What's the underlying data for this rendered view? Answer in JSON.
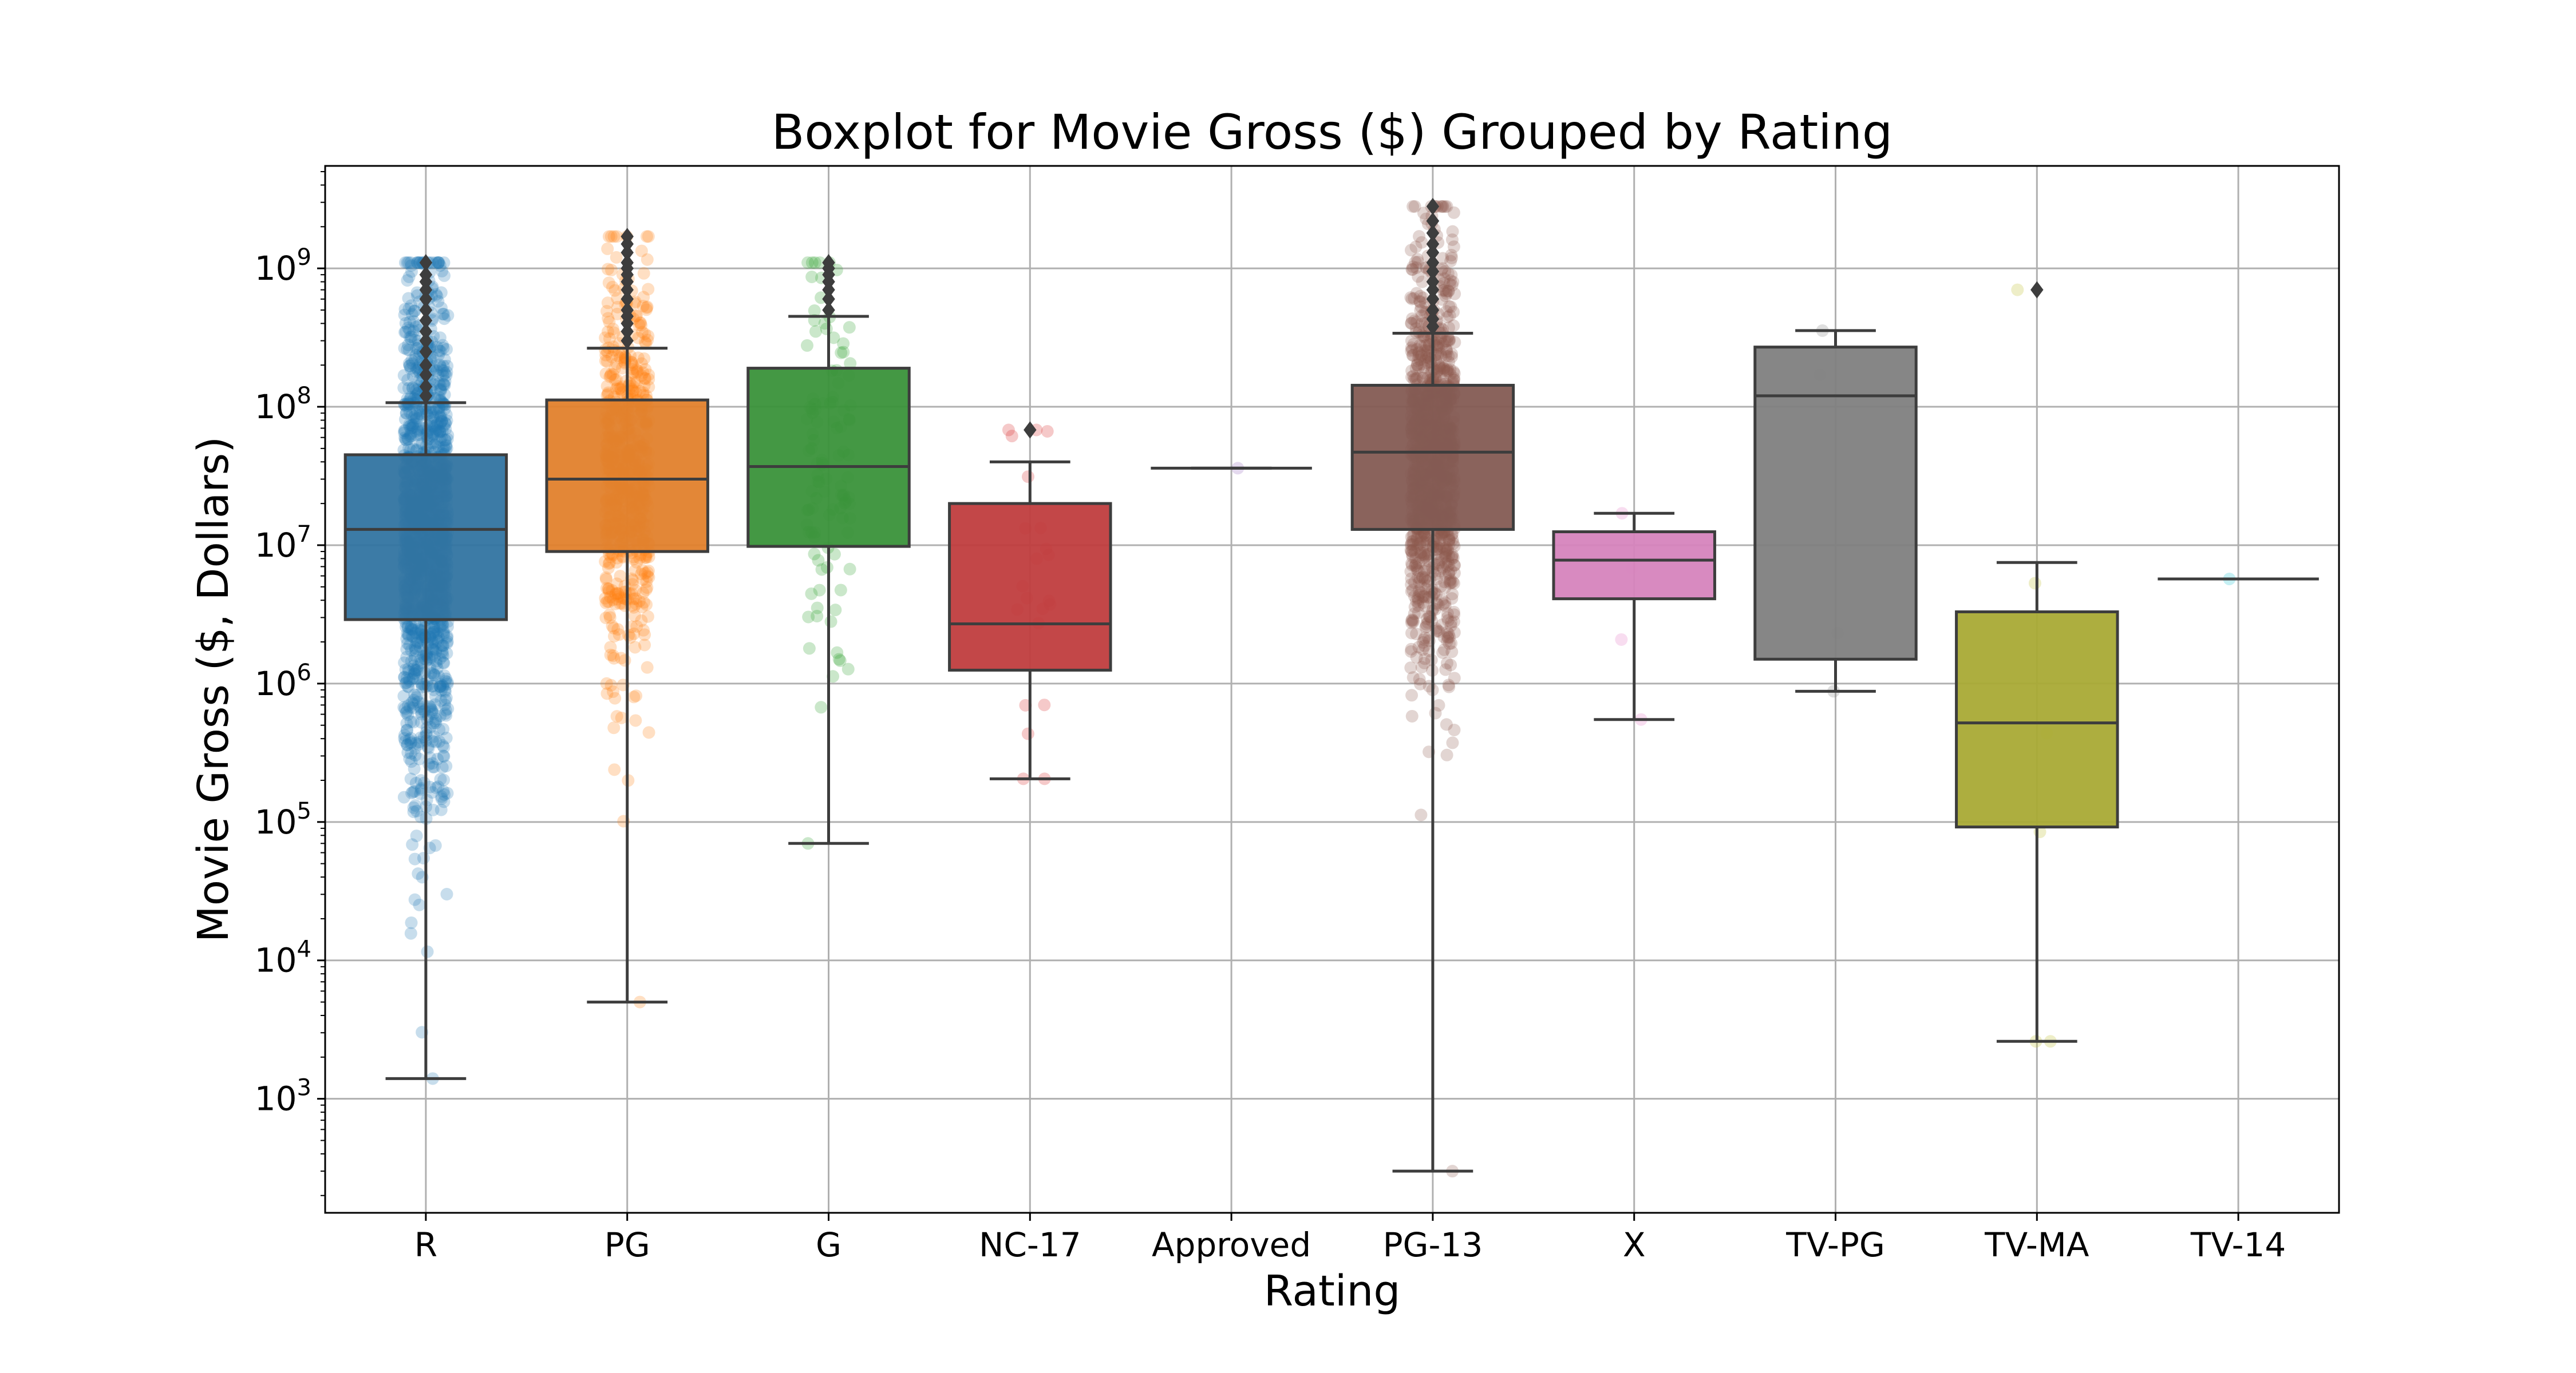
{
  "chart_data": {
    "type": "boxplot",
    "title": "Boxplot for Movie Gross ($) Grouped by Rating",
    "xlabel": "Rating",
    "ylabel": "Movie Gross ($, Dollars)",
    "yscale": "log",
    "ylim": [
      150,
      5500000000
    ],
    "yticks": [
      {
        "value": 1000,
        "base": "10",
        "exp": "3"
      },
      {
        "value": 10000,
        "base": "10",
        "exp": "4"
      },
      {
        "value": 100000,
        "base": "10",
        "exp": "5"
      },
      {
        "value": 1000000,
        "base": "10",
        "exp": "6"
      },
      {
        "value": 10000000,
        "base": "10",
        "exp": "7"
      },
      {
        "value": 100000000,
        "base": "10",
        "exp": "8"
      },
      {
        "value": 1000000000,
        "base": "10",
        "exp": "9"
      }
    ],
    "grid": true,
    "groups": [
      {
        "category": "R",
        "color": "#3274a1",
        "point_color": "#1f77b4",
        "whisker_low": 1400,
        "q1": 2900000,
        "median": 13000000,
        "q3": 45000000,
        "whisker_high": 107000000,
        "outliers": [
          1100000000,
          900000000,
          800000000,
          700000000,
          600000000,
          500000000,
          420000000,
          350000000,
          300000000,
          250000000,
          200000000,
          170000000,
          140000000,
          120000000
        ],
        "points": {
          "count": 1400,
          "min": 1400,
          "max": 1100000000,
          "log_mean": 7.1,
          "log_sd": 0.9
        }
      },
      {
        "category": "PG",
        "color": "#e1812c",
        "point_color": "#ff7f0e",
        "whisker_low": 5000,
        "q1": 9000000,
        "median": 30000000,
        "q3": 112000000,
        "whisker_high": 265000000,
        "outliers": [
          1700000000,
          1500000000,
          1300000000,
          1100000000,
          1000000000,
          900000000,
          800000000,
          700000000,
          600000000,
          500000000,
          450000000,
          400000000,
          350000000,
          300000000
        ],
        "points": {
          "count": 600,
          "min": 5000,
          "max": 1700000000,
          "log_mean": 7.5,
          "log_sd": 0.75
        }
      },
      {
        "category": "G",
        "color": "#3a923a",
        "point_color": "#2ca02c",
        "whisker_low": 70000,
        "q1": 9800000,
        "median": 37000000,
        "q3": 190000000,
        "whisker_high": 450000000,
        "outliers": [
          1100000000,
          1000000000,
          900000000,
          800000000,
          700000000,
          600000000,
          500000000
        ],
        "points": {
          "count": 110,
          "min": 70000,
          "max": 1100000000,
          "log_mean": 7.6,
          "log_sd": 0.8
        }
      },
      {
        "category": "NC-17",
        "color": "#c03d3e",
        "point_color": "#d62728",
        "whisker_low": 205000,
        "q1": 1250000,
        "median": 2700000,
        "q3": 20000000,
        "whisker_high": 40000000,
        "outliers": [
          68000000
        ],
        "points": {
          "count": 22,
          "min": 205000,
          "max": 68000000,
          "log_mean": 6.6,
          "log_sd": 0.7
        }
      },
      {
        "category": "Approved",
        "color": "#9372b2",
        "point_color": "#9467bd",
        "whisker_low": 36000000,
        "q1": 36000000,
        "median": 36000000,
        "q3": 36000000,
        "whisker_high": 36000000,
        "outliers": [],
        "points": {
          "count": 1,
          "min": 36000000,
          "max": 36000000,
          "log_mean": 7.56,
          "log_sd": 0.0
        }
      },
      {
        "category": "PG-13",
        "color": "#845b53",
        "point_color": "#8c564b",
        "whisker_low": 300,
        "q1": 13000000,
        "median": 47000000,
        "q3": 143000000,
        "whisker_high": 340000000,
        "outliers": [
          2800000000,
          2200000000,
          1800000000,
          1500000000,
          1300000000,
          1100000000,
          950000000,
          800000000,
          700000000,
          600000000,
          500000000,
          430000000,
          380000000
        ],
        "points": {
          "count": 1100,
          "min": 300,
          "max": 2800000000,
          "log_mean": 7.6,
          "log_sd": 0.75
        }
      },
      {
        "category": "X",
        "color": "#d684bd",
        "point_color": "#e377c2",
        "whisker_low": 550000,
        "q1": 4100000,
        "median": 7800000,
        "q3": 12500000,
        "whisker_high": 17000000,
        "outliers": [],
        "points": {
          "count": 4,
          "min": 550000,
          "max": 17000000,
          "log_mean": 6.8,
          "log_sd": 0.5
        }
      },
      {
        "category": "TV-PG",
        "color": "#7f7f7f",
        "point_color": "#7f7f7f",
        "whisker_low": 880000,
        "q1": 1500000,
        "median": 120000000,
        "q3": 270000000,
        "whisker_high": 355000000,
        "outliers": [],
        "points": {
          "count": 4,
          "min": 880000,
          "max": 355000000,
          "log_mean": 7.2,
          "log_sd": 1.0
        }
      },
      {
        "category": "TV-MA",
        "color": "#a9aa35",
        "point_color": "#bcbd22",
        "whisker_low": 2600,
        "q1": 92000,
        "median": 520000,
        "q3": 3300000,
        "whisker_high": 7500000,
        "outliers": [
          700000000
        ],
        "points": {
          "count": 6,
          "min": 2600,
          "max": 700000000,
          "log_mean": 5.6,
          "log_sd": 1.2
        }
      },
      {
        "category": "TV-14",
        "color": "#2ea7b8",
        "point_color": "#17becf",
        "whisker_low": 5700000,
        "q1": 5700000,
        "median": 5700000,
        "q3": 5700000,
        "whisker_high": 5700000,
        "outliers": [],
        "points": {
          "count": 1,
          "min": 5700000,
          "max": 5700000,
          "log_mean": 6.76,
          "log_sd": 0.0
        }
      }
    ]
  }
}
